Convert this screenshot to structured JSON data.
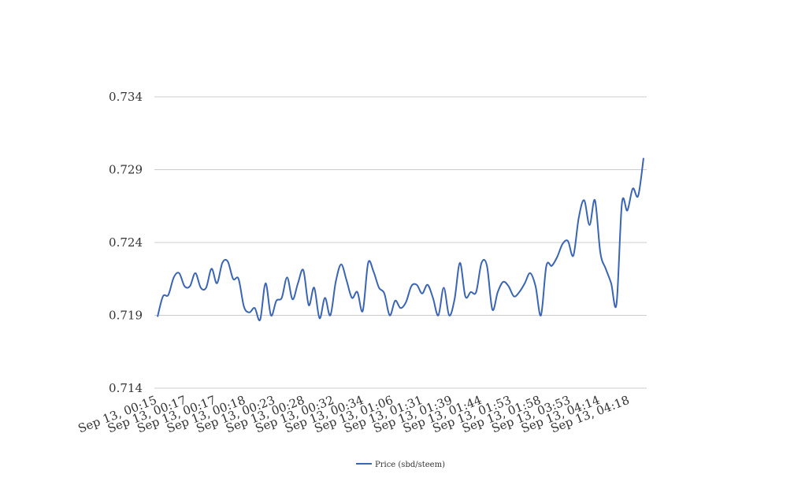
{
  "chart_data": {
    "type": "line",
    "title": "",
    "xlabel": "",
    "ylabel": "",
    "ylim": [
      0.714,
      0.734
    ],
    "yticks": [
      "0.734",
      "0.729",
      "0.724",
      "0.719",
      "0.714"
    ],
    "xtick_labels": [
      "Sep 13, 00:15",
      "Sep 13, 00:17",
      "Sep 13, 00:17",
      "Sep 13, 00:18",
      "Sep 13, 00:23",
      "Sep 13, 00:28",
      "Sep 13, 00:32",
      "Sep 13, 00:34",
      "Sep 13, 01:06",
      "Sep 13, 01:31",
      "Sep 13, 01:39",
      "Sep 13, 01:44",
      "Sep 13, 01:53",
      "Sep 13, 01:58",
      "Sep 13, 03:53",
      "Sep 13, 04:14",
      "Sep 13, 04:18"
    ],
    "grid": true,
    "legend_position": "bottom",
    "series": [
      {
        "name": "Price (sbd/steem)",
        "color": "#3a64b4",
        "values": [
          0.7189,
          0.7203,
          0.7204,
          0.7216,
          0.7219,
          0.721,
          0.721,
          0.7219,
          0.7209,
          0.7209,
          0.7222,
          0.7212,
          0.7226,
          0.7227,
          0.7215,
          0.7215,
          0.7196,
          0.7192,
          0.7195,
          0.7187,
          0.7212,
          0.719,
          0.72,
          0.7202,
          0.7216,
          0.7201,
          0.7212,
          0.7221,
          0.7197,
          0.7209,
          0.7188,
          0.7202,
          0.719,
          0.7213,
          0.7225,
          0.7214,
          0.7202,
          0.7206,
          0.7193,
          0.7226,
          0.722,
          0.7209,
          0.7205,
          0.719,
          0.72,
          0.7195,
          0.7199,
          0.721,
          0.7211,
          0.7205,
          0.7211,
          0.7202,
          0.719,
          0.7209,
          0.719,
          0.7201,
          0.7226,
          0.7203,
          0.7206,
          0.7206,
          0.7226,
          0.7224,
          0.7194,
          0.7206,
          0.7213,
          0.721,
          0.7203,
          0.7206,
          0.7212,
          0.7219,
          0.721,
          0.719,
          0.7224,
          0.7224,
          0.723,
          0.7239,
          0.7241,
          0.7231,
          0.7257,
          0.7269,
          0.7252,
          0.7269,
          0.7233,
          0.7222,
          0.7212,
          0.7198,
          0.7267,
          0.7262,
          0.7277,
          0.7272,
          0.7298
        ]
      }
    ]
  }
}
